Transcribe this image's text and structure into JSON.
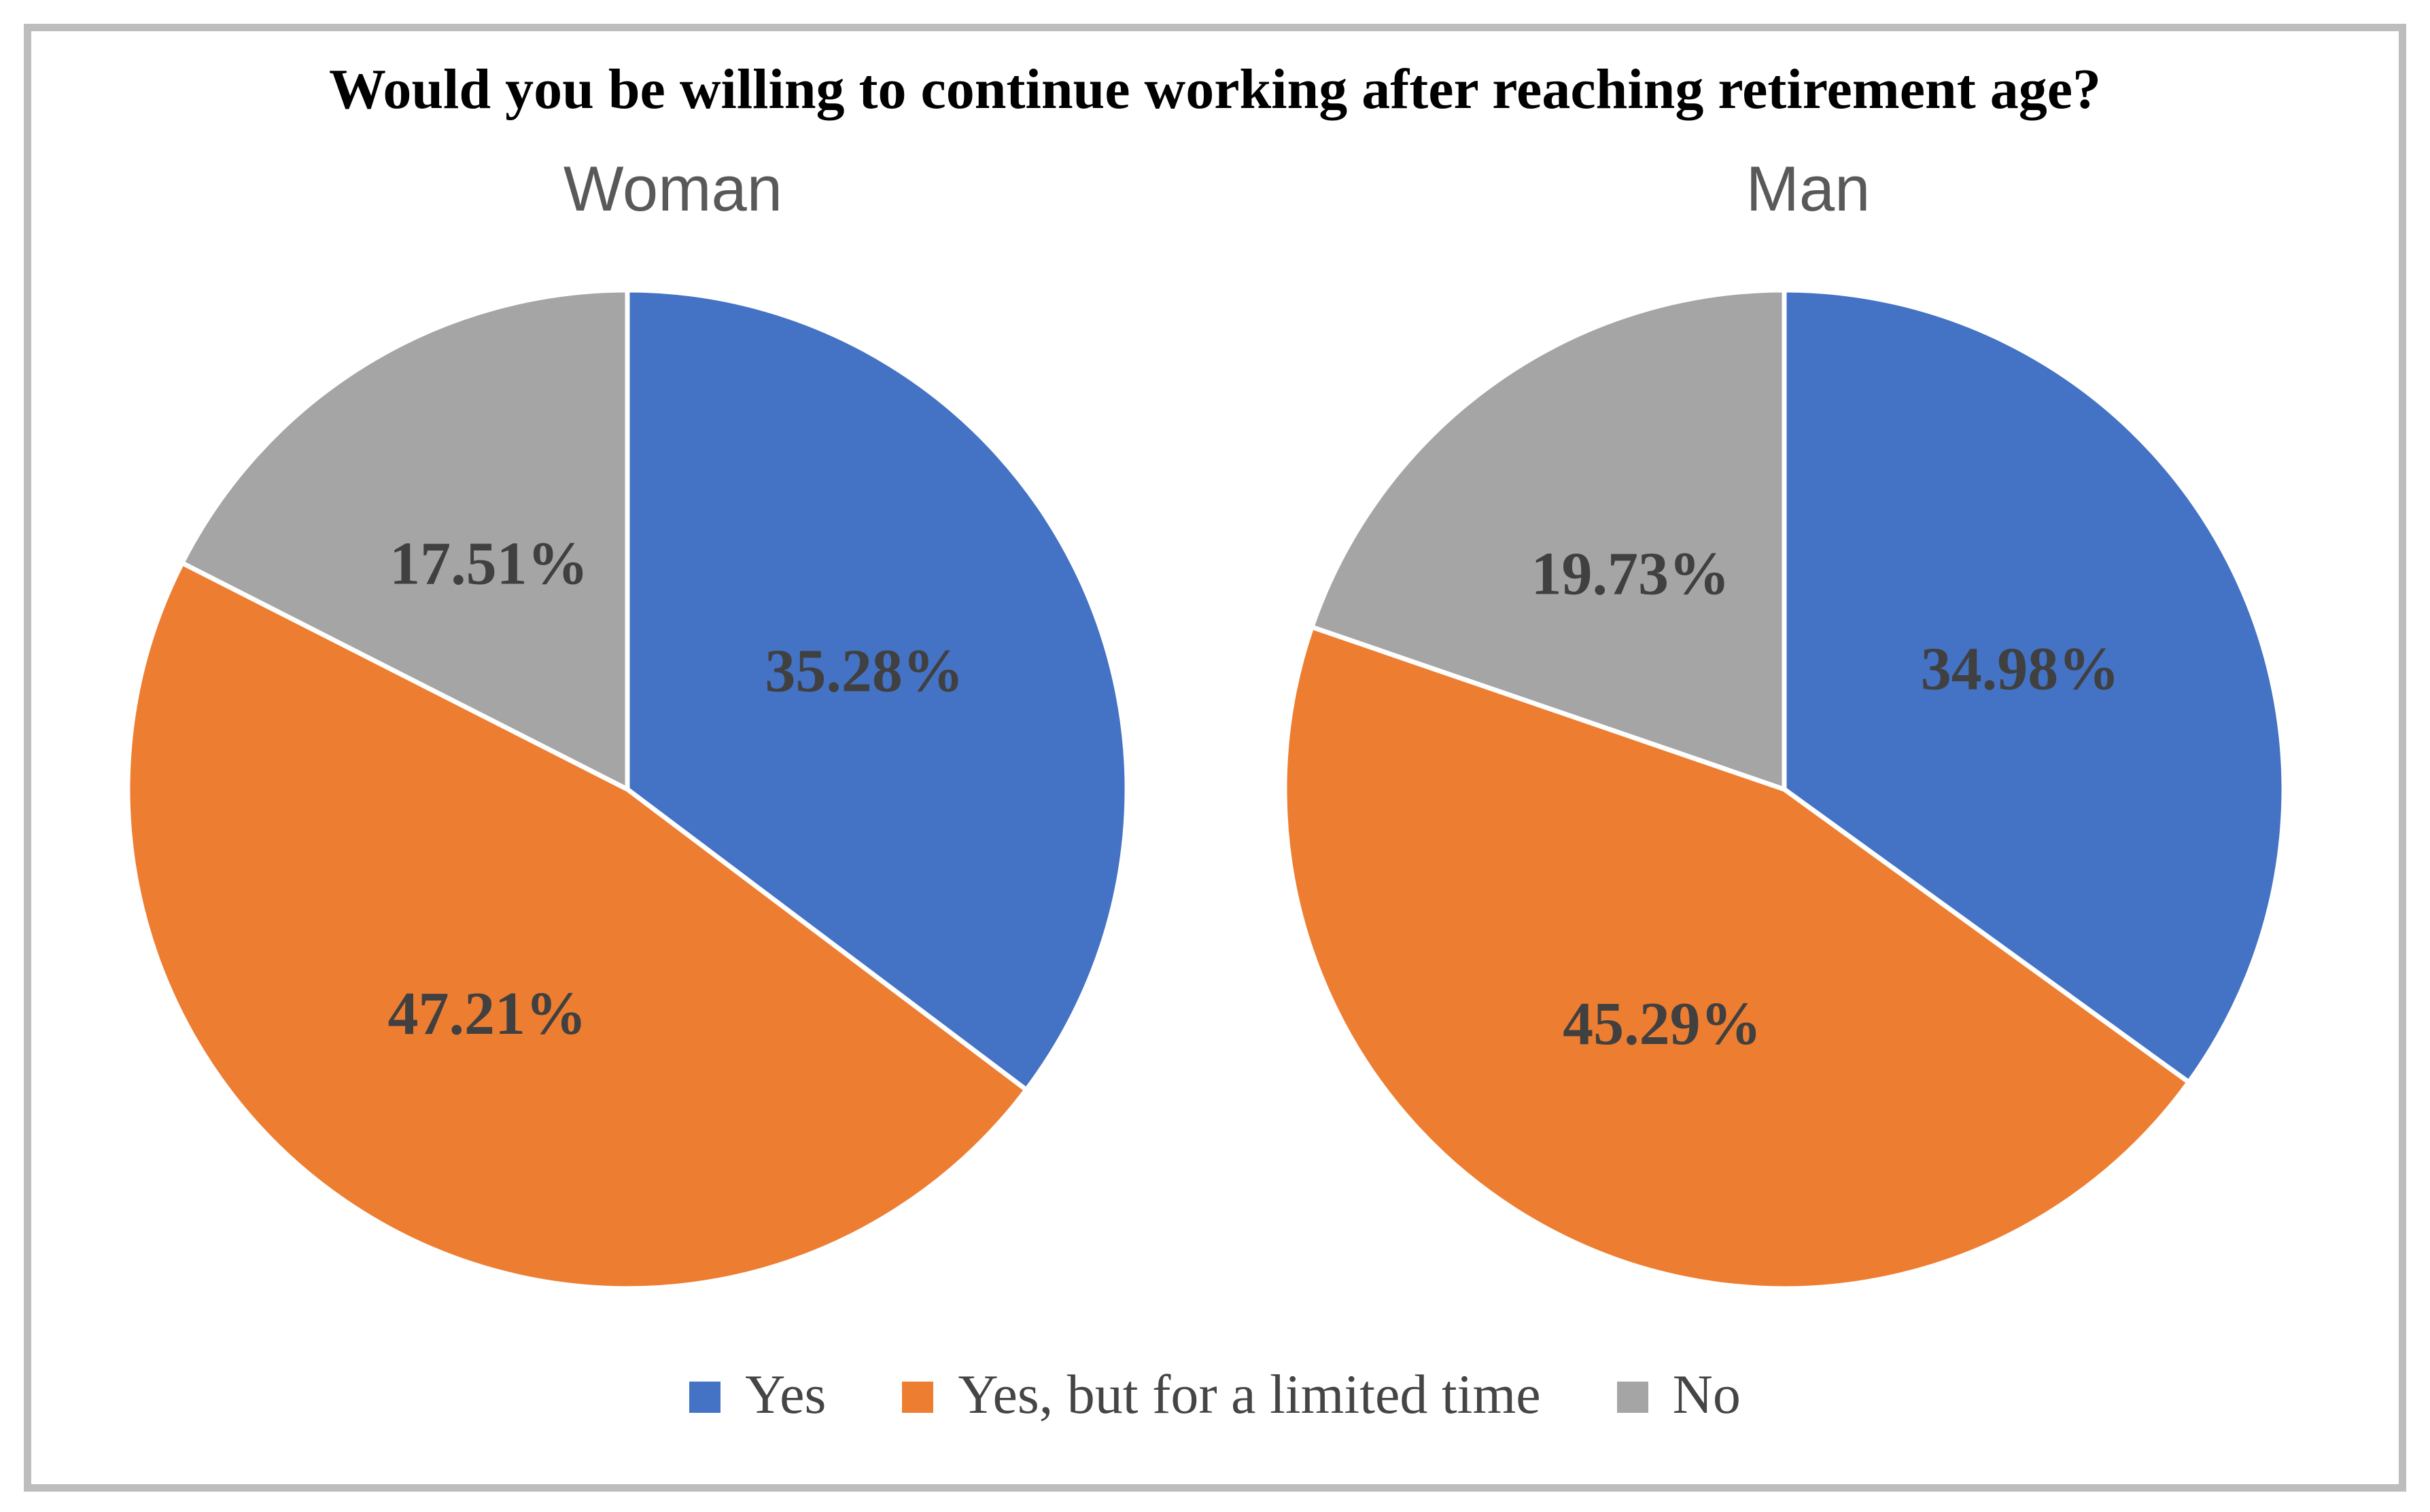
{
  "figure": {
    "title": "Would you be willing to continue working after reaching retirement age?"
  },
  "legend": {
    "position": "bottom",
    "items": [
      {
        "label": "Yes",
        "color": "#4472C4"
      },
      {
        "label": "Yes, but for a limited time",
        "color": "#ED7D31"
      },
      {
        "label": "No",
        "color": "#A5A5A5"
      }
    ]
  },
  "style": {
    "frame_border_color": "#BDBDBD",
    "title_color": "#000000",
    "subtitle_color": "#595959",
    "data_label_color": "#404040",
    "slice_separator_color": "#FFFFFF"
  },
  "chart_data": [
    {
      "type": "pie",
      "title": "Woman",
      "labels": [
        "Yes",
        "Yes, but for a limited time",
        "No"
      ],
      "values": [
        35.28,
        47.21,
        17.51
      ],
      "data_labels": [
        "35.28%",
        "47.21%",
        "17.51%"
      ],
      "colors": [
        "#4472C4",
        "#ED7D31",
        "#A5A5A5"
      ],
      "start_angle_deg": 0,
      "direction": "clockwise",
      "label_position": "inside"
    },
    {
      "type": "pie",
      "title": "Man",
      "labels": [
        "Yes",
        "Yes, but for a limited time",
        "No"
      ],
      "values": [
        34.98,
        45.29,
        19.73
      ],
      "data_labels": [
        "34.98%",
        "45.29%",
        "19.73%"
      ],
      "colors": [
        "#4472C4",
        "#ED7D31",
        "#A5A5A5"
      ],
      "start_angle_deg": 0,
      "direction": "clockwise",
      "label_position": "inside"
    }
  ]
}
